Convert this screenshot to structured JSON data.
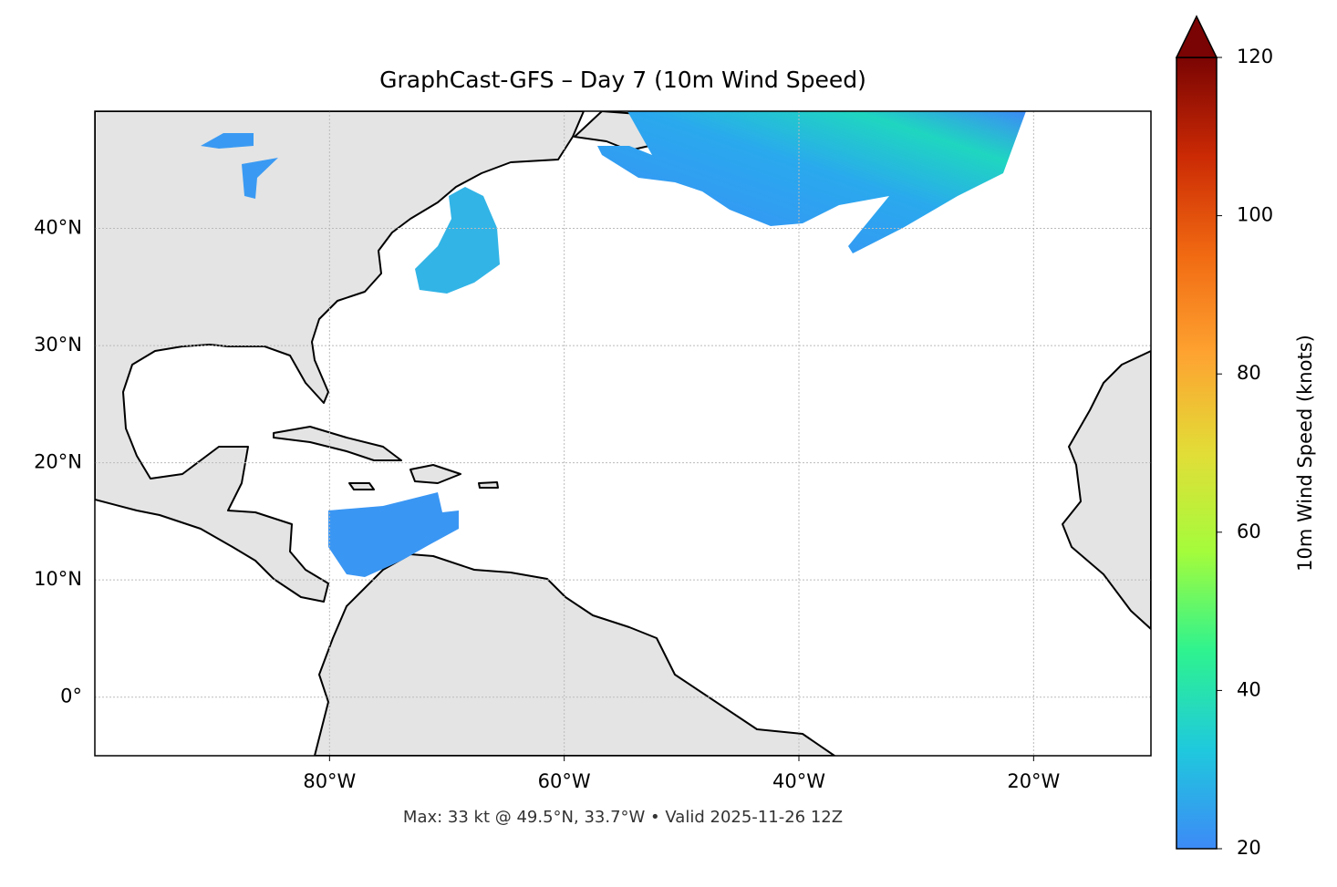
{
  "chart_data": {
    "type": "map",
    "title": "GraphCast-GFS – Day 7 (10m Wind Speed)",
    "footer": "Max: 33 kt @ 49.5°N, 33.7°W • Valid 2025-11-26 12Z",
    "xlim": [
      -100,
      -10
    ],
    "ylim": [
      -5,
      50
    ],
    "xticks": [
      {
        "value": -80,
        "label": "80°W"
      },
      {
        "value": -60,
        "label": "60°W"
      },
      {
        "value": -40,
        "label": "40°W"
      },
      {
        "value": -20,
        "label": "20°W"
      }
    ],
    "yticks": [
      {
        "value": 0,
        "label": "0°"
      },
      {
        "value": 10,
        "label": "10°N"
      },
      {
        "value": 20,
        "label": "20°N"
      },
      {
        "value": 30,
        "label": "30°N"
      },
      {
        "value": 40,
        "label": "40°N"
      }
    ],
    "grid": true,
    "colorbar": {
      "label": "10m Wind Speed (knots)",
      "lim": [
        20,
        120
      ],
      "ticks": [
        20,
        40,
        60,
        80,
        100,
        120
      ],
      "colors": [
        "#3d8af7",
        "#1fc9dd",
        "#2ef38f",
        "#a4fc3b",
        "#e2dd37",
        "#fea331",
        "#f16a12",
        "#cb2a04",
        "#7a0403"
      ]
    }
  }
}
